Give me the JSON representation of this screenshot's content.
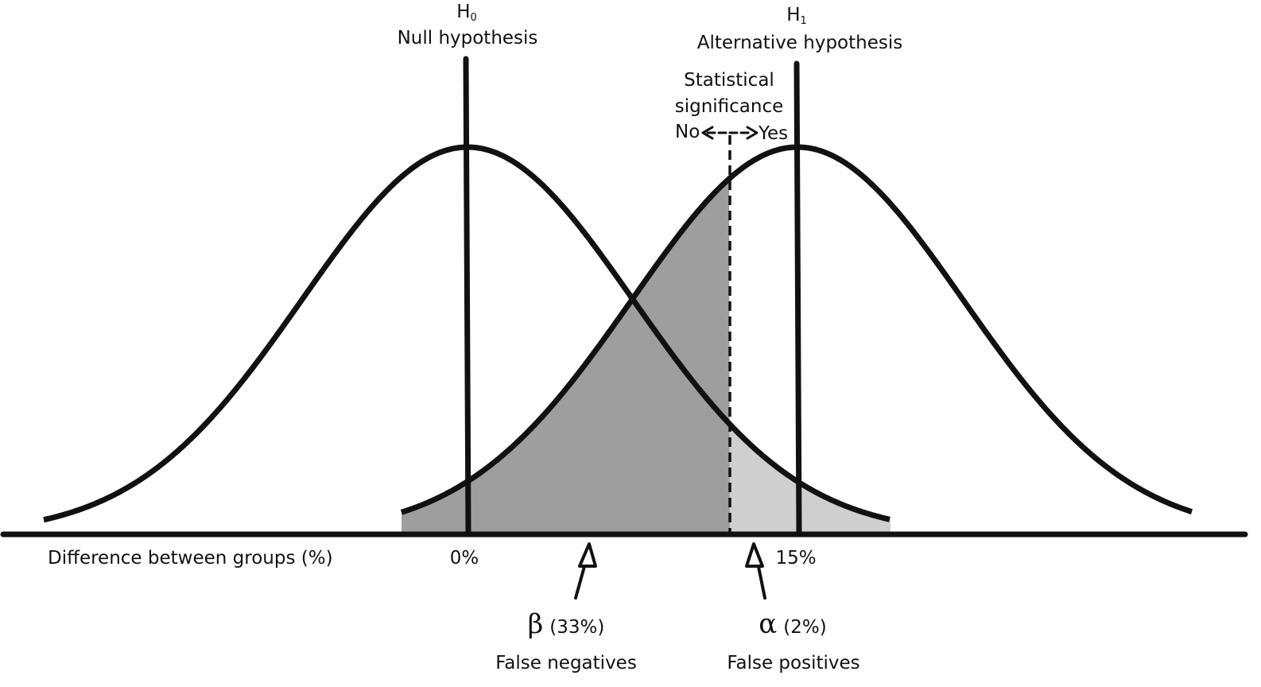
{
  "null_hyp": {
    "symbol": "H",
    "subscript": "0",
    "label": "Null hypothesis"
  },
  "alt_hyp": {
    "symbol": "H",
    "subscript": "1",
    "label": "Alternative hypothesis"
  },
  "significance": {
    "line1": "Statistical",
    "line2": "significance",
    "no": "No",
    "yes": "Yes"
  },
  "axis": {
    "label": "Difference between groups (%)",
    "tick_null": "0%",
    "tick_alt": "15%"
  },
  "beta": {
    "symbol": "β",
    "value": "(33%)",
    "caption": "False negatives"
  },
  "alpha": {
    "symbol": "α",
    "value": "(2%)",
    "caption": "False positives"
  },
  "colors": {
    "beta_fill": "#9e9e9e",
    "alpha_fill": "#cfcfcf",
    "ink": "#111111"
  }
}
